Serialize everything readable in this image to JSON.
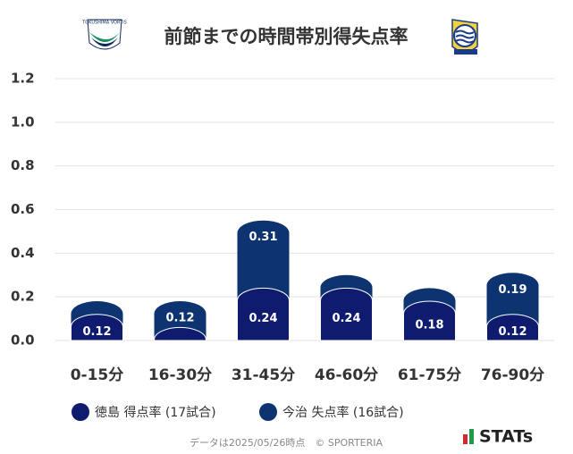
{
  "chart_data": {
    "type": "bar",
    "title": "前節までの時間帯別得失点率",
    "categories": [
      "0-15分",
      "16-30分",
      "31-45分",
      "46-60分",
      "61-75分",
      "76-90分"
    ],
    "stacked": true,
    "series": [
      {
        "name": "徳島 得点率 (17試合)",
        "color": "#0f1b6e",
        "values": [
          0.12,
          0.06,
          0.24,
          0.24,
          0.18,
          0.12
        ],
        "value_labels": [
          "0.12",
          null,
          "0.24",
          "0.24",
          "0.18",
          "0.12"
        ]
      },
      {
        "name": "今治 失点率 (16試合)",
        "color": "#0d3370",
        "values": [
          0.06,
          0.12,
          0.31,
          0.06,
          0.06,
          0.19
        ],
        "value_labels": [
          null,
          "0.12",
          "0.31",
          null,
          null,
          "0.19"
        ]
      }
    ],
    "ylim": [
      0,
      1.2
    ],
    "yticks": [
      {
        "value": 0,
        "label": "0.0"
      },
      0.2,
      0.4,
      0.6,
      0.8,
      {
        "value": 1,
        "label": "1.0"
      },
      1.2
    ],
    "grid": true,
    "footer": "データは2025/05/26時点　© SPORTERIA",
    "brand": "STATs",
    "team_left": "TOKUSHIMA VORTIS"
  }
}
